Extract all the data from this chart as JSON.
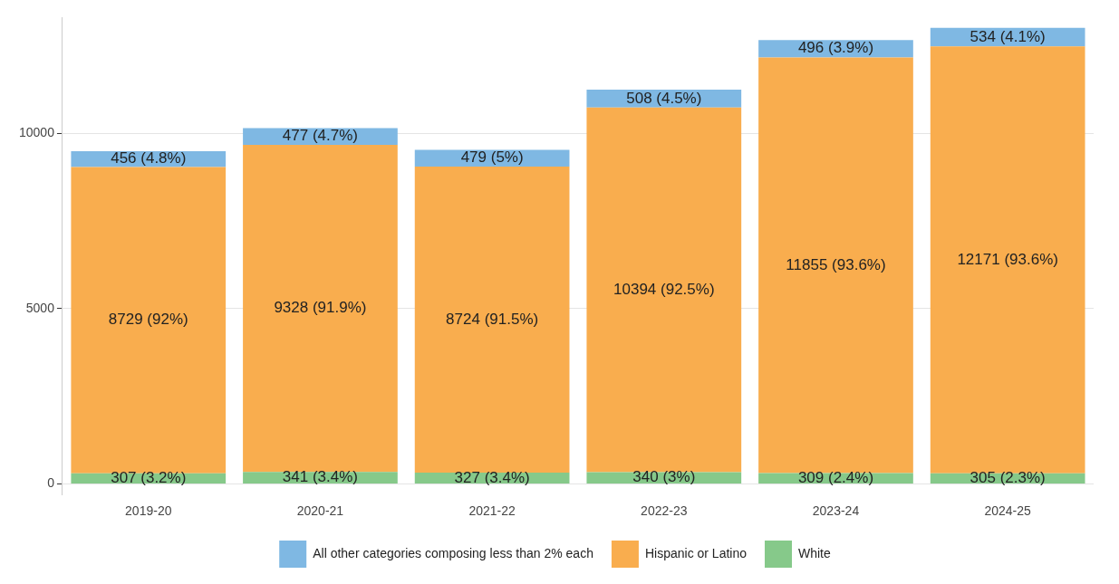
{
  "chart_data": {
    "type": "bar",
    "stacked": true,
    "categories": [
      "2019-20",
      "2020-21",
      "2021-22",
      "2022-23",
      "2023-24",
      "2024-25"
    ],
    "series": [
      {
        "name": "White",
        "color": "#86c98a",
        "values": [
          307,
          341,
          327,
          340,
          309,
          305
        ],
        "value_labels": [
          "307 (3.2%)",
          "341 (3.4%)",
          "327 (3.4%)",
          "340 (3%)",
          "309 (2.4%)",
          "305 (2.3%)"
        ]
      },
      {
        "name": "Hispanic or Latino",
        "color": "#f9ad4e",
        "values": [
          8729,
          9328,
          8724,
          10394,
          11855,
          12171
        ],
        "value_labels": [
          "8729 (92%)",
          "9328 (91.9%)",
          "8724 (91.5%)",
          "10394 (92.5%)",
          "11855 (93.6%)",
          "12171 (93.6%)"
        ]
      },
      {
        "name": "All other categories composing less than 2% each",
        "color": "#7fb8e3",
        "values": [
          456,
          477,
          479,
          508,
          496,
          534
        ],
        "value_labels": [
          "456 (4.8%)",
          "477 (4.7%)",
          "479 (5%)",
          "508 (4.5%)",
          "496 (3.9%)",
          "534 (4.1%)"
        ]
      }
    ],
    "ylim": [
      -300,
      13300
    ],
    "yticks": [
      0,
      5000,
      10000
    ],
    "grid": "y",
    "legend": "bottom"
  }
}
